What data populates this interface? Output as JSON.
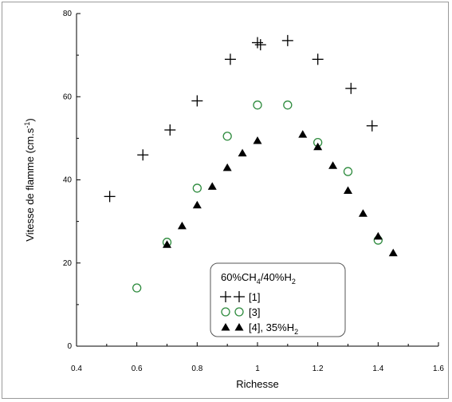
{
  "chart_data": {
    "type": "scatter",
    "xlabel": "Richesse",
    "ylabel": "Vitesse de flamme (cm.s-1)",
    "ylabel_parts": {
      "main": "Vitesse de flamme (cm.s",
      "sup": "-1",
      "end": ")"
    },
    "xlim": [
      0.4,
      1.6
    ],
    "ylim": [
      0,
      80
    ],
    "x_ticks": [
      0.4,
      0.6,
      0.8,
      1.0,
      1.2,
      1.4,
      1.6
    ],
    "x_tick_labels": [
      "0.4",
      "0.6",
      "0.8",
      "1",
      "1.2",
      "1.4",
      "1.6"
    ],
    "y_ticks": [
      0,
      20,
      40,
      60,
      80
    ],
    "y_tick_labels": [
      "0",
      "20",
      "40",
      "60",
      "80"
    ],
    "grid": false,
    "legend_placement": "bottom-center",
    "legend": {
      "title_parts": [
        "60%CH",
        "4",
        "/40%H",
        "2"
      ],
      "entries": [
        {
          "marker": "plus",
          "label": "[1]"
        },
        {
          "marker": "circle",
          "label": "[3]"
        },
        {
          "marker": "triangle",
          "label_parts": [
            "[4], 35%H",
            "2"
          ]
        }
      ]
    },
    "series": [
      {
        "name": "[1]",
        "marker": "plus",
        "color": "#000000",
        "x": [
          0.51,
          0.62,
          0.71,
          0.8,
          0.91,
          1.0,
          1.01,
          1.1,
          1.2,
          1.31,
          1.38
        ],
        "y": [
          36,
          46,
          52,
          59,
          69,
          73,
          72.5,
          73.5,
          69,
          62,
          53
        ]
      },
      {
        "name": "[3]",
        "marker": "circle",
        "color": "#2e8b3e",
        "x": [
          0.6,
          0.7,
          0.8,
          0.9,
          1.0,
          1.1,
          1.2,
          1.3,
          1.4
        ],
        "y": [
          14,
          25,
          38,
          50.5,
          58,
          58,
          49,
          42,
          25.5
        ]
      },
      {
        "name": "[4], 35%H2",
        "marker": "triangle",
        "color": "#000000",
        "x": [
          0.7,
          0.75,
          0.8,
          0.85,
          0.9,
          0.95,
          1.0,
          1.15,
          1.2,
          1.25,
          1.3,
          1.35,
          1.4,
          1.45
        ],
        "y": [
          24.5,
          29,
          34,
          38.5,
          43,
          46.5,
          49.5,
          51,
          48,
          43.5,
          37.5,
          32,
          26.5,
          22.5
        ]
      }
    ]
  }
}
